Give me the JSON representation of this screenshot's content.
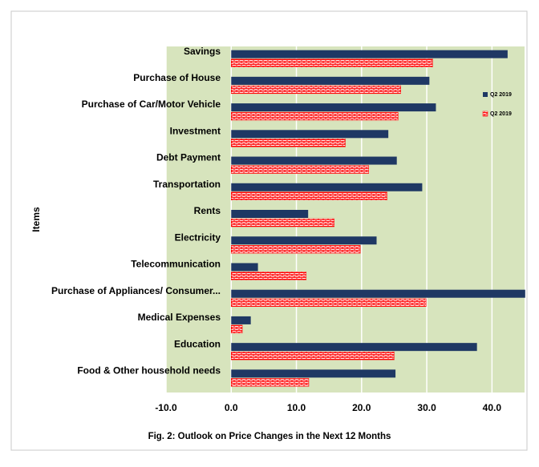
{
  "chart_data": {
    "type": "hbar",
    "caption": "Fig. 2: Outlook on Price Changes in the Next 12 Months",
    "ylabel": "Items",
    "categories": [
      "Savings",
      "Purchase of House",
      "Purchase of Car/Motor Vehicle",
      "Investment",
      "Debt Payment",
      "Transportation",
      "Rents",
      "Electricity",
      "Telecommunication",
      "Purchase of Appliances/ Consumer...",
      "Medical Expenses",
      "Education",
      "Food & Other household needs"
    ],
    "series": [
      {
        "name": "Q2 2019",
        "color": "#1f3864",
        "values": [
          42.4,
          30.4,
          31.4,
          24.1,
          25.4,
          29.3,
          11.8,
          22.3,
          4.1,
          45.1,
          3.0,
          37.7,
          25.2
        ]
      },
      {
        "name": "Q2 2019",
        "color": "#ff0000",
        "values": [
          30.9,
          26.0,
          25.6,
          17.5,
          21.1,
          23.9,
          15.8,
          19.8,
          11.5,
          29.9,
          1.7,
          25.0,
          11.9
        ]
      }
    ],
    "xlim": [
      -10,
      45
    ],
    "xticks": [
      {
        "value": -10,
        "label": "-10.0"
      },
      {
        "value": 0,
        "label": "0.0"
      },
      {
        "value": 10,
        "label": "10.0"
      },
      {
        "value": 20,
        "label": "20.0"
      },
      {
        "value": 30,
        "label": "30.0"
      },
      {
        "value": 40,
        "label": "40.0"
      }
    ],
    "grid": true,
    "legend": "right",
    "background": "#d7e4bd"
  }
}
